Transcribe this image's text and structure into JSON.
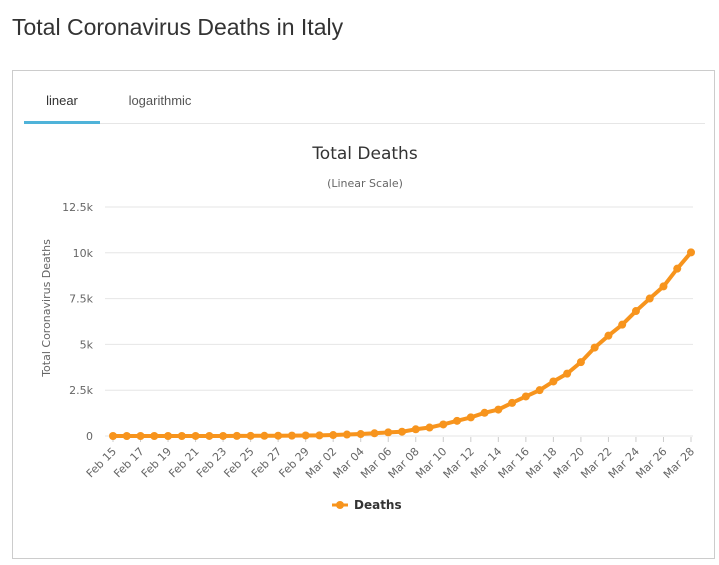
{
  "page": {
    "title": "Total Coronavirus Deaths in Italy"
  },
  "tabs": [
    {
      "label": "linear",
      "active": true
    },
    {
      "label": "logarithmic",
      "active": false
    }
  ],
  "colors": {
    "series": "#f7941d",
    "tab_active": "#4fb3d9"
  },
  "chart_data": {
    "type": "line",
    "title": "Total Deaths",
    "subtitle": "(Linear Scale)",
    "ylabel": "Total Coronavirus Deaths",
    "ylim": [
      0,
      12500
    ],
    "yticks": [
      0,
      2500,
      5000,
      7500,
      10000,
      12500
    ],
    "ytick_labels": [
      "0",
      "2.5k",
      "5k",
      "7.5k",
      "10k",
      "12.5k"
    ],
    "xtick_labels": [
      "Feb 15",
      "Feb 17",
      "Feb 19",
      "Feb 21",
      "Feb 23",
      "Feb 25",
      "Feb 27",
      "Feb 29",
      "Mar 02",
      "Mar 04",
      "Mar 06",
      "Mar 08",
      "Mar 10",
      "Mar 12",
      "Mar 14",
      "Mar 16",
      "Mar 18",
      "Mar 20",
      "Mar 22",
      "Mar 24",
      "Mar 26",
      "Mar 28"
    ],
    "grid": true,
    "legend": "bottom",
    "x": [
      "Feb 15",
      "Feb 16",
      "Feb 17",
      "Feb 18",
      "Feb 19",
      "Feb 20",
      "Feb 21",
      "Feb 22",
      "Feb 23",
      "Feb 24",
      "Feb 25",
      "Feb 26",
      "Feb 27",
      "Feb 28",
      "Feb 29",
      "Mar 01",
      "Mar 02",
      "Mar 03",
      "Mar 04",
      "Mar 05",
      "Mar 06",
      "Mar 07",
      "Mar 08",
      "Mar 09",
      "Mar 10",
      "Mar 11",
      "Mar 12",
      "Mar 13",
      "Mar 14",
      "Mar 15",
      "Mar 16",
      "Mar 17",
      "Mar 18",
      "Mar 19",
      "Mar 20",
      "Mar 21",
      "Mar 22",
      "Mar 23",
      "Mar 24",
      "Mar 25",
      "Mar 26",
      "Mar 27",
      "Mar 28"
    ],
    "series": [
      {
        "name": "Deaths",
        "values": [
          0,
          0,
          0,
          0,
          0,
          0,
          1,
          2,
          3,
          7,
          10,
          12,
          17,
          21,
          29,
          34,
          52,
          79,
          107,
          148,
          197,
          233,
          366,
          463,
          631,
          827,
          1016,
          1266,
          1441,
          1809,
          2158,
          2503,
          2978,
          3405,
          4032,
          4825,
          5476,
          6077,
          6820,
          7503,
          8165,
          9134,
          10023
        ]
      }
    ]
  }
}
